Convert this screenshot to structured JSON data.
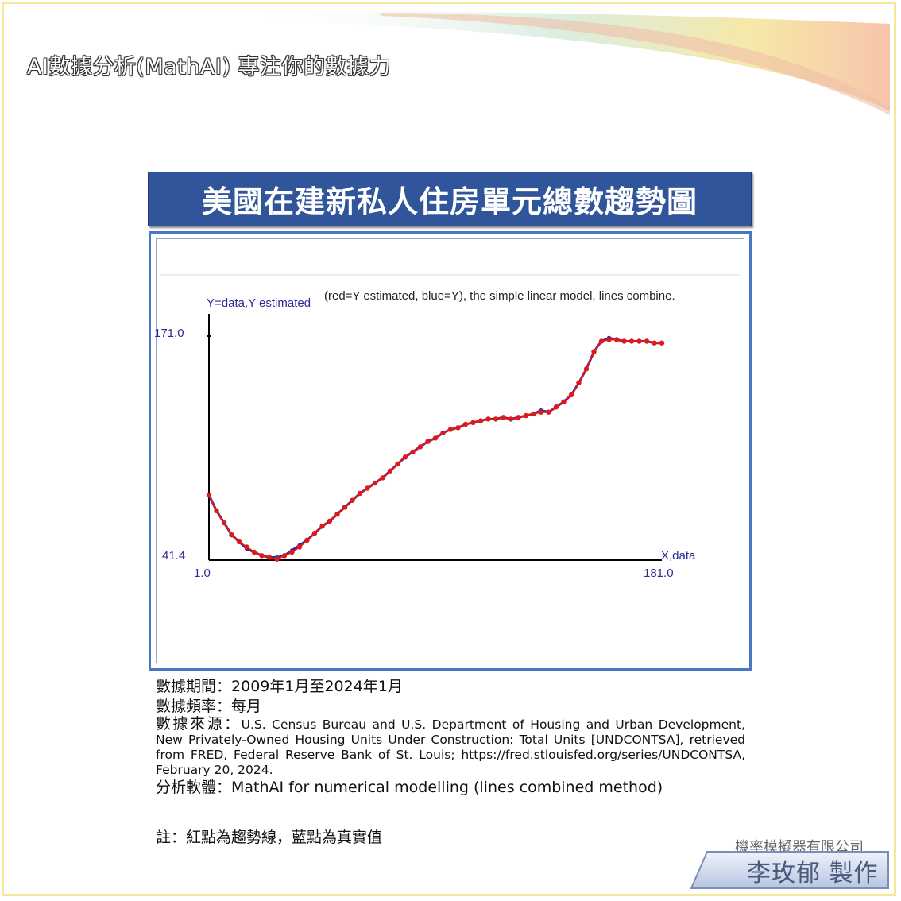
{
  "header": {
    "text": "AI數據分析(MathAI) 專注你的數據力"
  },
  "title": "美國在建新私人住房單元總數趨勢圖",
  "chart_data": {
    "type": "line",
    "ylabel": "Y=data,Y estimated",
    "xlabel": "X,data",
    "caption": "(red=Y estimated, blue=Y), the simple linear model, lines combine.",
    "x_ticks": [
      "1.0",
      "181.0"
    ],
    "y_ticks": [
      "41.4",
      "171.0"
    ],
    "xlim": [
      1,
      181
    ],
    "ylim": [
      41.4,
      171.0
    ],
    "series": [
      {
        "name": "blue=Y",
        "color": "#2a2aa8",
        "x": [
          1,
          4,
          7,
          10,
          13,
          16,
          19,
          22,
          25,
          28,
          31,
          34,
          37,
          40,
          43,
          46,
          49,
          52,
          55,
          58,
          61,
          64,
          67,
          70,
          73,
          76,
          79,
          82,
          85,
          88,
          91,
          94,
          97,
          100,
          103,
          106,
          109,
          112,
          115,
          118,
          121,
          124,
          127,
          130,
          133,
          136,
          139,
          142,
          145,
          148,
          151,
          154,
          157,
          160,
          163,
          166,
          169,
          172,
          175,
          178,
          181
        ],
        "values": [
          79,
          70,
          63,
          56,
          52,
          48,
          46,
          44,
          43,
          43,
          44,
          47,
          50,
          53,
          57,
          61,
          64,
          68,
          72,
          76,
          80,
          83,
          86,
          89,
          93,
          97,
          101,
          104,
          107,
          110,
          112,
          115,
          117,
          118,
          120,
          121,
          122,
          123,
          123,
          124,
          123,
          124,
          125,
          126,
          128,
          127,
          130,
          133,
          137,
          144,
          152,
          162,
          168,
          170,
          169,
          168,
          168,
          168,
          168,
          167,
          167
        ]
      },
      {
        "name": "red=Y estimated",
        "color": "#e01818",
        "x": [
          1,
          4,
          7,
          10,
          13,
          16,
          19,
          22,
          25,
          28,
          31,
          34,
          37,
          40,
          43,
          46,
          49,
          52,
          55,
          58,
          61,
          64,
          67,
          70,
          73,
          76,
          79,
          82,
          85,
          88,
          91,
          94,
          97,
          100,
          103,
          106,
          109,
          112,
          115,
          118,
          121,
          124,
          127,
          130,
          133,
          136,
          139,
          142,
          145,
          148,
          151,
          154,
          157,
          160,
          163,
          166,
          169,
          172,
          175,
          178,
          181
        ],
        "values": [
          79,
          70,
          63,
          56,
          52,
          49,
          46,
          44,
          43,
          42,
          44,
          46,
          49,
          53,
          57,
          61,
          64,
          68,
          72,
          76,
          80,
          83,
          86,
          89,
          93,
          97,
          101,
          104,
          107,
          110,
          112,
          115,
          117,
          118,
          120,
          121,
          122,
          123,
          123,
          124,
          123,
          124,
          125,
          126,
          127,
          127,
          130,
          133,
          137,
          144,
          152,
          162,
          168,
          169,
          169,
          168,
          168,
          168,
          168,
          167,
          167
        ]
      }
    ]
  },
  "meta": {
    "period_label": "數據期間：",
    "period_value": "2009年1月至2024年1月",
    "freq_label": "數據頻率：",
    "freq_value": "每月",
    "source_label": "數據來源：",
    "source_value": "U.S. Census Bureau and U.S. Department of Housing and Urban Development, New Privately-Owned Housing Units Under Construction: Total Units [UNDCONTSA], retrieved from FRED, Federal Reserve Bank of St. Louis; https://fred.stlouisfed.org/series/UNDCONTSA, February 20, 2024.",
    "software_label": "分析軟體：",
    "software_value": "MathAI for numerical modelling (lines combined method)"
  },
  "note": "註：紅點為趨勢線，藍點為真實值",
  "company": "機率模擬器有限公司",
  "maker": "李玫郁 製作"
}
